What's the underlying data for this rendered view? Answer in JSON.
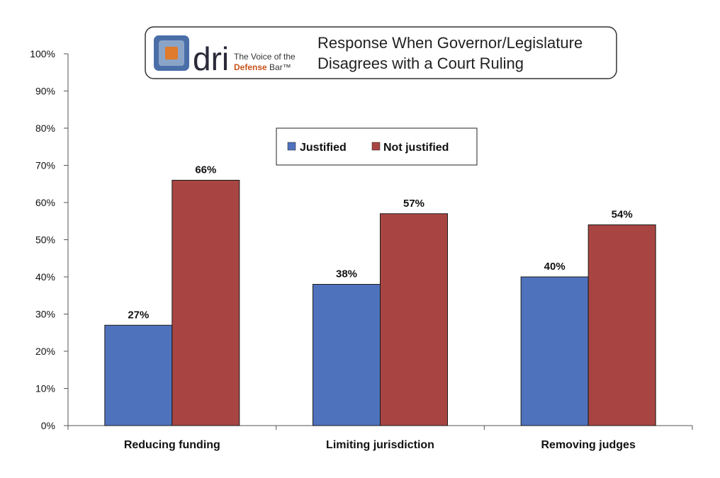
{
  "logo": {
    "wordmark": "dri",
    "tagline_line1": "The Voice of the",
    "tagline_line2_accent": "Defense",
    "tagline_line2_rest": " Bar™"
  },
  "chart_data": {
    "type": "bar",
    "title_line1": "Response When Governor/Legislature",
    "title_line2": "Disagrees with a Court Ruling",
    "categories": [
      "Reducing funding",
      "Limiting jurisdiction",
      "Removing judges"
    ],
    "series": [
      {
        "name": "Justified",
        "values": [
          27,
          38,
          40
        ],
        "labels": [
          "27%",
          "38%",
          "40%"
        ],
        "color": "#4f72bd"
      },
      {
        "name": "Not justified",
        "values": [
          66,
          57,
          54
        ],
        "labels": [
          "66%",
          "57%",
          "54%"
        ],
        "color": "#a84542"
      }
    ],
    "yticks": [
      "0%",
      "10%",
      "20%",
      "30%",
      "40%",
      "50%",
      "60%",
      "70%",
      "80%",
      "90%",
      "100%"
    ],
    "ylim": [
      0,
      100
    ],
    "grid": false,
    "legend_position": "top-center"
  }
}
